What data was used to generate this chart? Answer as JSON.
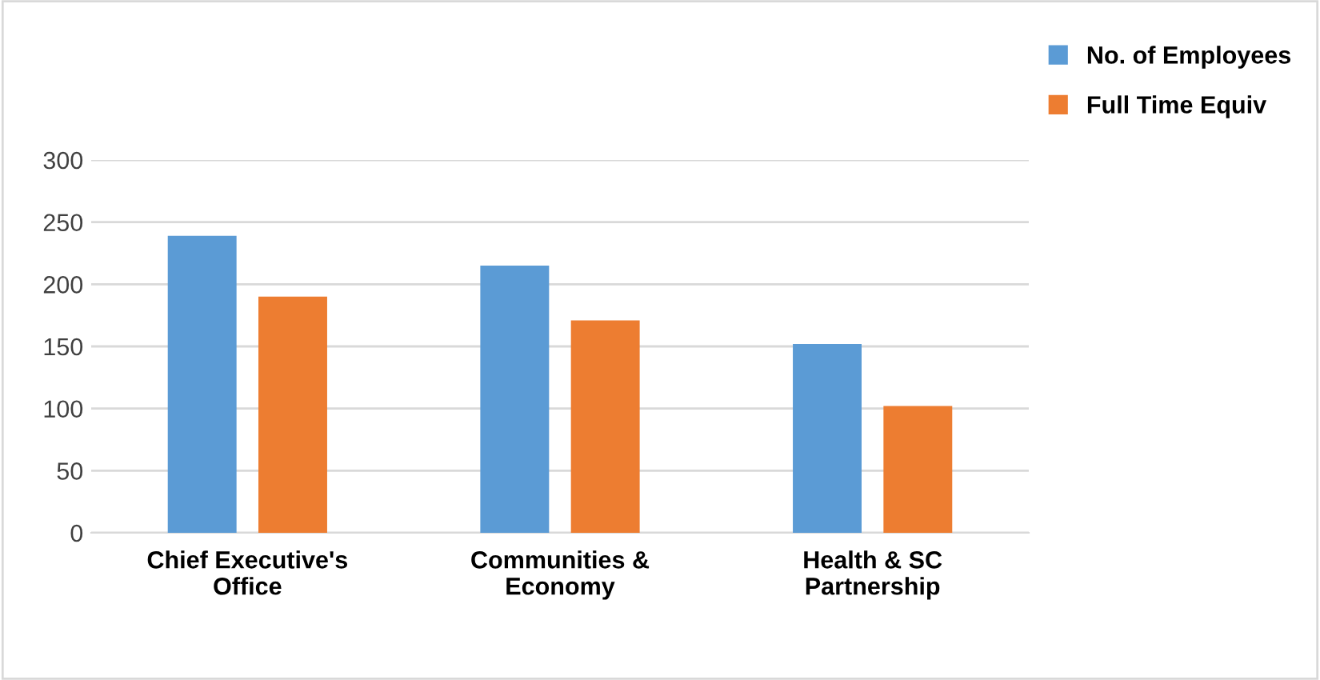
{
  "chart_data": {
    "type": "bar",
    "categories": [
      "Chief Executive's\nOffice",
      "Communities &\nEconomy",
      "Health & SC\nPartnership"
    ],
    "series": [
      {
        "name": "No. of Employees",
        "color": "#5b9bd5",
        "values": [
          239,
          215,
          152
        ]
      },
      {
        "name": "Full Time Equiv",
        "color": "#ed7d31",
        "values": [
          190,
          171,
          102
        ]
      }
    ],
    "ylim": [
      0,
      300
    ],
    "yticks": [
      0,
      50,
      100,
      150,
      200,
      250,
      300
    ],
    "grid": "y",
    "legend": "top right"
  }
}
